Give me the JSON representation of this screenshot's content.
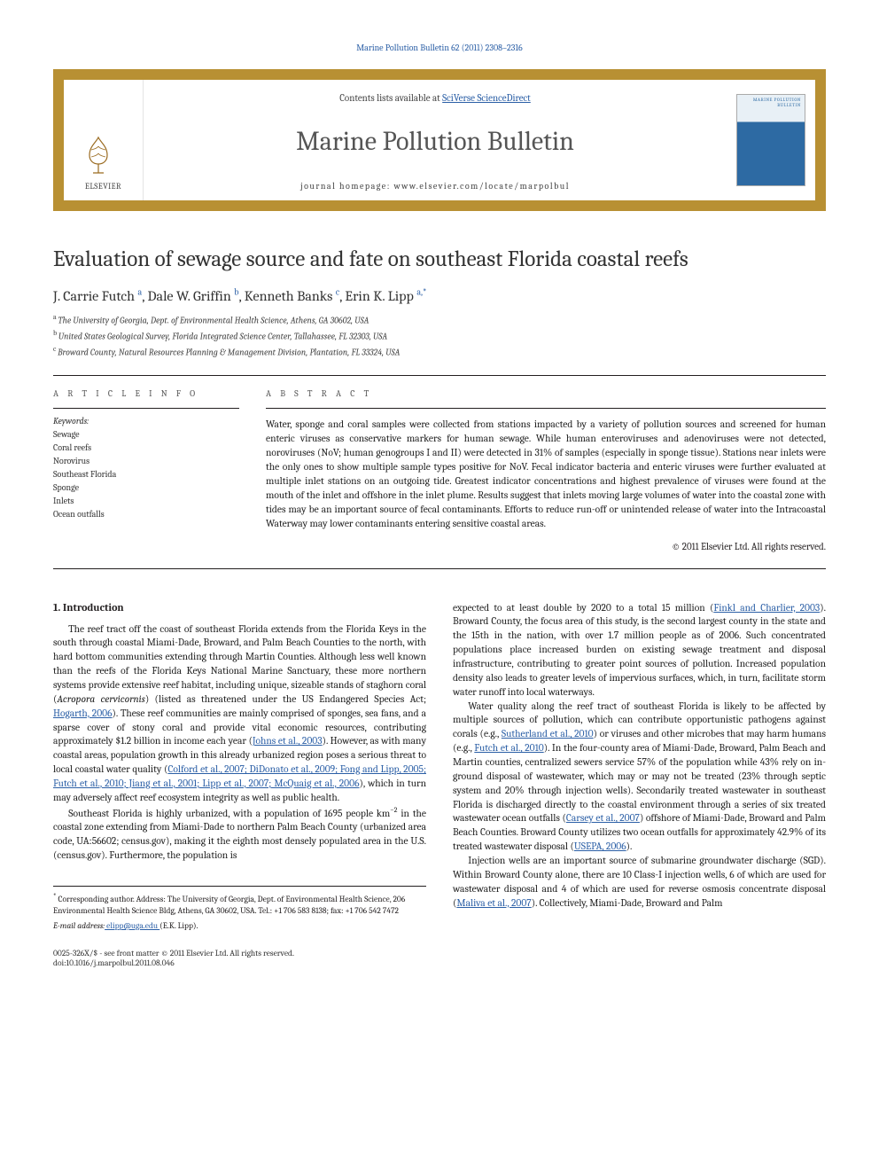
{
  "header": {
    "citation": "Marine Pollution Bulletin 62 (2011) 2308–2316",
    "contentsLine_pre": "Contents lists available at ",
    "contentsLine_link": "SciVerse ScienceDirect",
    "journalName": "Marine Pollution Bulletin",
    "homepage_pre": "journal homepage: ",
    "homepage_url": "www.elsevier.com/locate/marpolbul",
    "publisherWord": "ELSEVIER",
    "coverTitle": "MARINE POLLUTION BULLETIN"
  },
  "article": {
    "title": "Evaluation of sewage source and fate on southeast Florida coastal reefs",
    "authors_html": "J. Carrie Futch",
    "authors": [
      {
        "name": "J. Carrie Futch",
        "sup": "a"
      },
      {
        "name": "Dale W. Griffin",
        "sup": "b"
      },
      {
        "name": "Kenneth Banks",
        "sup": "c"
      },
      {
        "name": "Erin K. Lipp",
        "sup": "a,*"
      }
    ],
    "affiliations": [
      {
        "sup": "a",
        "text": "The University of Georgia, Dept. of Environmental Health Science, Athens, GA 30602, USA"
      },
      {
        "sup": "b",
        "text": "United States Geological Survey, Florida Integrated Science Center, Tallahassee, FL 32303, USA"
      },
      {
        "sup": "c",
        "text": "Broward County, Natural Resources Planning & Management Division, Plantation, FL 33324, USA"
      }
    ]
  },
  "labels": {
    "articleInfo": "A R T I C L E   I N F O",
    "abstract": "A B S T R A C T",
    "keywords": "Keywords:"
  },
  "keywords": [
    "Sewage",
    "Coral reefs",
    "Norovirus",
    "Southeast Florida",
    "Sponge",
    "Inlets",
    "Ocean outfalls"
  ],
  "abstract": {
    "text": "Water, sponge and coral samples were collected from stations impacted by a variety of pollution sources and screened for human enteric viruses as conservative markers for human sewage. While human enteroviruses and adenoviruses were not detected, noroviruses (NoV; human genogroups I and II) were detected in 31% of samples (especially in sponge tissue). Stations near inlets were the only ones to show multiple sample types positive for NoV. Fecal indicator bacteria and enteric viruses were further evaluated at multiple inlet stations on an outgoing tide. Greatest indicator concentrations and highest prevalence of viruses were found at the mouth of the inlet and offshore in the inlet plume. Results suggest that inlets moving large volumes of water into the coastal zone with tides may be an important source of fecal contaminants. Efforts to reduce run-off or unintended release of water into the Intracoastal Waterway may lower contaminants entering sensitive coastal areas.",
    "copyright": "© 2011 Elsevier Ltd. All rights reserved."
  },
  "section1": {
    "heading": "1. Introduction",
    "p1_a": "The reef tract off the coast of southeast Florida extends from the Florida Keys in the south through coastal Miami-Dade, Broward, and Palm Beach Counties to the north, with hard bottom communities extending through Martin Counties. Although less well known than the reefs of the Florida Keys National Marine Sanctuary, these more northern systems provide extensive reef habitat, including unique, sizeable stands of staghorn coral (",
    "p1_a_ital": "Acropora cervicornis",
    "p1_b": ") (listed as threatened under the US Endangered Species Act; ",
    "p1_ref1": "Hogarth, 2006",
    "p1_c": "). These reef communities are mainly comprised of sponges, sea fans, and a sparse cover of stony coral and provide vital economic resources, contributing approximately $1.2 billion in income each year (",
    "p1_ref2": "Johns et al., 2003",
    "p1_d": "). However, as with many coastal areas, population growth in this already urbanized region poses a serious threat to local coastal water quality (",
    "p1_ref3": "Colford et al., 2007; DiDonato et al., 2009; Fong and Lipp, 2005; Futch et al., 2010; Jiang et al., 2001; Lipp et al., 2007; McQuaig et al., 2006",
    "p1_e": "), which in turn may adversely affect reef ecosystem integrity as well as public health.",
    "p2_a": "Southeast Florida is highly urbanized, with a population of 1695 people km",
    "p2_sup": "−2",
    "p2_b": " in the coastal zone extending from Miami-Dade to northern Palm Beach County (urbanized area code, UA:56602; census.gov), making it the eighth most densely populated area in the U.S. (census.gov). Furthermore, the population is ",
    "p3_a": "expected to at least double by 2020 to a total 15 million (",
    "p3_ref1": "Finkl and Charlier, 2003",
    "p3_b": "). Broward County, the focus area of this study, is the second largest county in the state and the 15th in the nation, with over 1.7 million people as of 2006. Such concentrated populations place increased burden on existing sewage treatment and disposal infrastructure, contributing to greater point sources of pollution. Increased population density also leads to greater levels of impervious surfaces, which, in turn, facilitate storm water runoff into local waterways.",
    "p4_a": "Water quality along the reef tract of southeast Florida is likely to be affected by multiple sources of pollution, which can contribute opportunistic pathogens against corals (e.g., ",
    "p4_ref1": "Sutherland et al., 2010",
    "p4_b": ") or viruses and other microbes that may harm humans (e.g., ",
    "p4_ref2": "Futch et al., 2010",
    "p4_c": "). In the four-county area of Miami-Dade, Broward, Palm Beach and Martin counties, centralized sewers service 57% of the population while 43% rely on in-ground disposal of wastewater, which may or may not be treated (23% through septic system and 20% through injection wells). Secondarily treated wastewater in southeast Florida is discharged directly to the coastal environment through a series of six treated wastewater ocean outfalls (",
    "p4_ref3": "Carsey et al., 2007",
    "p4_d": ") offshore of Miami-Dade, Broward and Palm Beach Counties. Broward County utilizes two ocean outfalls for approximately 42.9% of its treated wastewater disposal (",
    "p4_ref4": "USEPA, 2006",
    "p4_e": ").",
    "p5_a": "Injection wells are an important source of submarine groundwater discharge (SGD). Within Broward County alone, there are 10 Class-I injection wells, 6 of which are used for wastewater disposal and 4 of which are used for reverse osmosis concentrate disposal (",
    "p5_ref1": "Maliva et al., 2007",
    "p5_b": "). Collectively, Miami-Dade, Broward and Palm"
  },
  "footnotes": {
    "corr_mark": "*",
    "corr_text": " Corresponding author. Address: The University of Georgia, Dept. of Environmental Health Science, 206 Environmental Health Science Bldg, Athens, GA 30602, USA. Tel.: +1 706 583 8138; fax: +1 706 542 7472",
    "email_label": "E-mail address:",
    "email_value": " elipp@uga.edu ",
    "email_owner": "(E.K. Lipp)."
  },
  "footer": {
    "left1": "0025-326X/$ - see front matter © 2011 Elsevier Ltd. All rights reserved.",
    "left2": "doi:10.1016/j.marpolbul.2011.08.046"
  },
  "colors": {
    "brandGold": "#b89033",
    "linkBlue": "#2b5fa6",
    "textDark": "#231f20",
    "textGray": "#555555",
    "bg": "#ffffff"
  },
  "typography": {
    "bodyFamily": "Cambria, Georgia, 'Times New Roman', serif",
    "titleSizePt": 25,
    "journalNameSizePt": 30,
    "bodySizePt": 11.5,
    "smallSizePt": 10
  }
}
